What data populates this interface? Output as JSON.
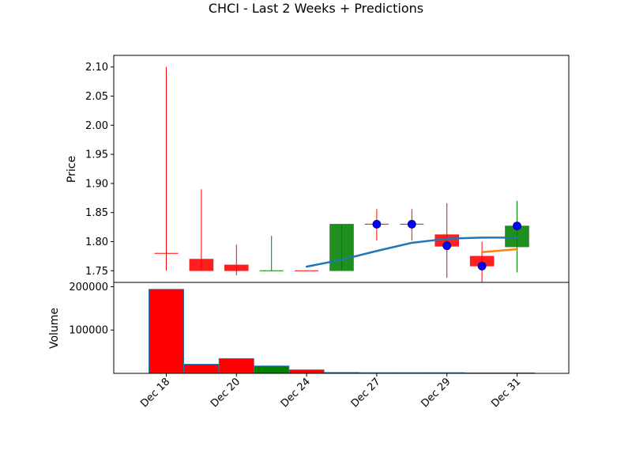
{
  "chart_data": {
    "type": "candlestick",
    "title": "CHCI - Last 2 Weeks + Predictions",
    "xtick_labels": [
      "Dec 18",
      "Dec 20",
      "Dec 24",
      "Dec 27",
      "Dec 29",
      "Dec 31"
    ],
    "price_panel": {
      "ylabel": "Price",
      "ylim": [
        1.73,
        2.12
      ],
      "yticks": [
        1.75,
        1.8,
        1.85,
        1.9,
        1.95,
        2.0,
        2.05,
        2.1
      ],
      "ytick_labels": [
        "1.75",
        "1.80",
        "1.85",
        "1.90",
        "1.95",
        "2.00",
        "2.05",
        "2.10"
      ],
      "candles": [
        {
          "x": 0,
          "open": 1.78,
          "close": 1.78,
          "high": 2.1,
          "low": 1.75,
          "color": "red"
        },
        {
          "x": 1,
          "open": 1.77,
          "close": 1.75,
          "high": 1.89,
          "low": 1.75,
          "color": "red"
        },
        {
          "x": 2,
          "open": 1.76,
          "close": 1.75,
          "high": 1.795,
          "low": 1.742,
          "color": "red"
        },
        {
          "x": 3,
          "open": 1.75,
          "close": 1.75,
          "high": 1.81,
          "low": 1.75,
          "color": "green"
        },
        {
          "x": 4,
          "open": 1.75,
          "close": 1.75,
          "high": 1.75,
          "low": 1.75,
          "color": "red"
        },
        {
          "x": 5,
          "open": 1.75,
          "close": 1.83,
          "high": 1.83,
          "low": 1.75,
          "color": "green"
        },
        {
          "x": 6,
          "open": 1.83,
          "close": 1.83,
          "high": 1.856,
          "low": 1.802,
          "color": "red"
        },
        {
          "x": 7,
          "open": 1.83,
          "close": 1.83,
          "high": 1.856,
          "low": 1.802,
          "color": "red"
        },
        {
          "x": 8,
          "open": 1.812,
          "close": 1.792,
          "high": 1.866,
          "low": 1.738,
          "color": "red"
        },
        {
          "x": 9,
          "open": 1.775,
          "close": 1.758,
          "high": 1.8,
          "low": 1.73,
          "color": "red"
        },
        {
          "x": 10,
          "open": 1.791,
          "close": 1.827,
          "high": 1.87,
          "low": 1.747,
          "color": "green"
        }
      ],
      "prediction_points": [
        {
          "x": 6,
          "y": 1.83
        },
        {
          "x": 7,
          "y": 1.83
        },
        {
          "x": 8,
          "y": 1.793
        },
        {
          "x": 9,
          "y": 1.758
        },
        {
          "x": 10,
          "y": 1.827
        }
      ],
      "moving_average": {
        "color": "#1f77b4",
        "points": [
          [
            4,
            1.757
          ],
          [
            5,
            1.769
          ],
          [
            6,
            1.784
          ],
          [
            7,
            1.798
          ],
          [
            8,
            1.805
          ],
          [
            9,
            1.807
          ],
          [
            10,
            1.807
          ]
        ]
      },
      "prediction_line": {
        "color": "#ff7f0e",
        "points": [
          [
            9,
            1.782
          ],
          [
            10,
            1.787
          ]
        ]
      }
    },
    "volume_panel": {
      "ylabel": "Volume",
      "ylim": [
        0,
        210000
      ],
      "yticks": [
        100000,
        200000
      ],
      "ytick_labels": [
        "100000",
        "200000"
      ],
      "bars": [
        {
          "x": 0,
          "value": 194000,
          "color": "red"
        },
        {
          "x": 1,
          "value": 21000,
          "color": "red"
        },
        {
          "x": 2,
          "value": 34000,
          "color": "red"
        },
        {
          "x": 3,
          "value": 17000,
          "color": "green"
        },
        {
          "x": 4,
          "value": 8000,
          "color": "red"
        },
        {
          "x": 5,
          "value": 2000,
          "color": "green"
        },
        {
          "x": 6,
          "value": 1500,
          "color": "red"
        },
        {
          "x": 7,
          "value": 1500,
          "color": "red"
        },
        {
          "x": 8,
          "value": 1500,
          "color": "red"
        },
        {
          "x": 9,
          "value": 1000,
          "color": "red"
        },
        {
          "x": 10,
          "value": 1000,
          "color": "green"
        }
      ]
    }
  }
}
